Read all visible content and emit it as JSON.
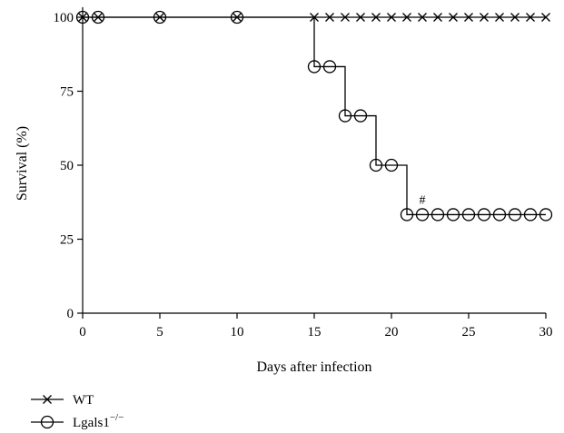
{
  "chart_data": {
    "type": "line",
    "title": "",
    "xlabel": "Days after infection",
    "ylabel": "Survival (%)",
    "xlim": [
      0,
      30
    ],
    "ylim": [
      0,
      100
    ],
    "xticks": [
      0,
      5,
      10,
      15,
      20,
      25,
      30
    ],
    "yticks": [
      0,
      25,
      50,
      75,
      100
    ],
    "grid": false,
    "legend_position": "bottom-left",
    "series": [
      {
        "name": "WT",
        "marker": "x",
        "color": "#000000",
        "x": [
          0,
          1,
          5,
          10,
          15,
          16,
          17,
          18,
          19,
          20,
          21,
          22,
          23,
          24,
          25,
          26,
          27,
          28,
          29,
          30
        ],
        "y": [
          100,
          100,
          100,
          100,
          100,
          100,
          100,
          100,
          100,
          100,
          100,
          100,
          100,
          100,
          100,
          100,
          100,
          100,
          100,
          100
        ]
      },
      {
        "name": "Lgals1",
        "name_superscript": "−/−",
        "marker": "o",
        "color": "#000000",
        "x": [
          0,
          1,
          5,
          10,
          15,
          15,
          16,
          17,
          17,
          18,
          19,
          19,
          20,
          21,
          21,
          22,
          23,
          24,
          25,
          26,
          27,
          28,
          29,
          30
        ],
        "y": [
          100,
          100,
          100,
          100,
          100,
          83.3,
          83.3,
          83.3,
          66.7,
          66.7,
          66.7,
          50,
          50,
          50,
          33.3,
          33.3,
          33.3,
          33.3,
          33.3,
          33.3,
          33.3,
          33.3,
          33.3,
          33.3
        ]
      }
    ],
    "annotations": [
      {
        "text": "#",
        "x": 22,
        "y": 37
      }
    ]
  }
}
